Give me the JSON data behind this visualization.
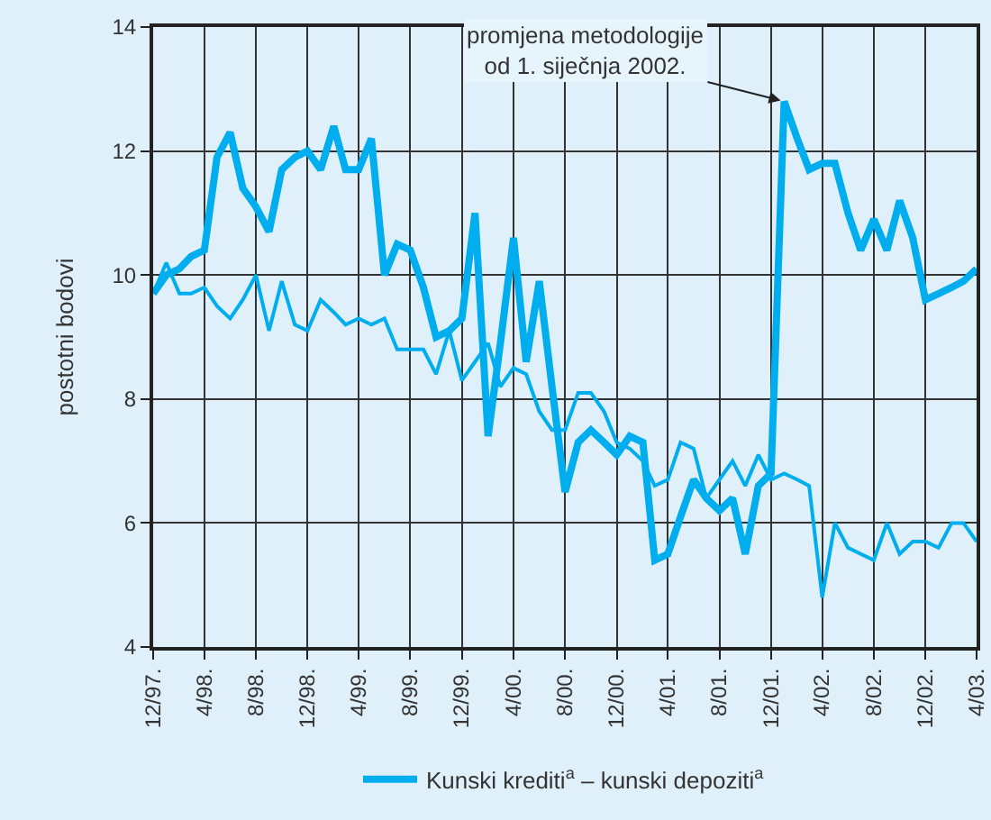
{
  "chart_data": {
    "type": "line",
    "ylabel": "postotni bodovi",
    "x": [
      "1997-12",
      "1998-01",
      "1998-02",
      "1998-03",
      "1998-04",
      "1998-05",
      "1998-06",
      "1998-07",
      "1998-08",
      "1998-09",
      "1998-10",
      "1998-11",
      "1998-12",
      "1999-01",
      "1999-02",
      "1999-03",
      "1999-04",
      "1999-05",
      "1999-06",
      "1999-07",
      "1999-08",
      "1999-09",
      "1999-10",
      "1999-11",
      "1999-12",
      "2000-01",
      "2000-02",
      "2000-03",
      "2000-04",
      "2000-05",
      "2000-06",
      "2000-07",
      "2000-08",
      "2000-09",
      "2000-10",
      "2000-11",
      "2000-12",
      "2001-01",
      "2001-02",
      "2001-03",
      "2001-04",
      "2001-05",
      "2001-06",
      "2001-07",
      "2001-08",
      "2001-09",
      "2001-10",
      "2001-11",
      "2001-12",
      "2002-01",
      "2002-02",
      "2002-03",
      "2002-04",
      "2002-05",
      "2002-06",
      "2002-07",
      "2002-08",
      "2002-09",
      "2002-10",
      "2002-11",
      "2002-12",
      "2003-01",
      "2003-02",
      "2003-03",
      "2003-04"
    ],
    "series": [
      {
        "name": "Kunski krediti$^{a}$ – kunski depoziti$^{a}$",
        "color": "#00aeef",
        "values": [
          9.7,
          10.0,
          10.1,
          10.3,
          10.4,
          11.9,
          12.3,
          11.4,
          11.1,
          10.7,
          11.7,
          11.9,
          12.0,
          11.7,
          12.4,
          11.7,
          11.7,
          12.2,
          10.0,
          10.5,
          10.4,
          9.8,
          9.0,
          9.1,
          9.3,
          11.0,
          7.4,
          8.9,
          10.6,
          8.6,
          9.9,
          8.2,
          6.5,
          7.3,
          7.5,
          7.3,
          7.1,
          7.4,
          7.3,
          5.4,
          5.5,
          6.1,
          6.7,
          6.4,
          6.2,
          6.4,
          5.5,
          6.6,
          6.8,
          12.8,
          12.2,
          11.7,
          11.8,
          11.8,
          11.0,
          10.4,
          10.9,
          10.4,
          11.2,
          10.6,
          9.6,
          9.7,
          9.8,
          9.9,
          10.1
        ]
      },
      {
        "color": "#00aeef",
        "values": [
          9.7,
          10.2,
          9.7,
          9.7,
          9.8,
          9.5,
          9.3,
          9.6,
          10.0,
          9.1,
          9.9,
          9.2,
          9.1,
          9.6,
          9.4,
          9.2,
          9.3,
          9.2,
          9.3,
          8.8,
          8.8,
          8.8,
          8.4,
          9.1,
          8.3,
          8.6,
          8.9,
          8.2,
          8.5,
          8.4,
          7.8,
          7.5,
          7.5,
          8.1,
          8.1,
          7.8,
          7.3,
          7.2,
          7.0,
          6.6,
          6.7,
          7.3,
          7.2,
          6.4,
          6.7,
          7.0,
          6.6,
          7.1,
          6.7,
          6.8,
          6.7,
          6.6,
          4.8,
          6.0,
          5.6,
          5.5,
          5.4,
          6.0,
          5.5,
          5.7,
          5.7,
          5.6,
          6.0,
          6.0,
          5.7
        ]
      }
    ],
    "xlim": [
      "1997-12",
      "2003-04"
    ],
    "xticks": [
      {
        "value": "1997-12",
        "label": "12/97."
      },
      {
        "value": "1998-04",
        "label": "4/98."
      },
      {
        "value": "1998-08",
        "label": "8/98."
      },
      {
        "value": "1998-12",
        "label": "12/98."
      },
      {
        "value": "1999-04",
        "label": "4/99."
      },
      {
        "value": "1999-08",
        "label": "8/99."
      },
      {
        "value": "1999-12",
        "label": "12/99."
      },
      {
        "value": "2000-04",
        "label": "4/00."
      },
      {
        "value": "2000-08",
        "label": "8/00."
      },
      {
        "value": "2000-12",
        "label": "12/00."
      },
      {
        "value": "2001-04",
        "label": "4/01."
      },
      {
        "value": "2001-08",
        "label": "8/01."
      },
      {
        "value": "2001-12",
        "label": "12/01."
      },
      {
        "value": "2002-04",
        "label": "4/02."
      },
      {
        "value": "2002-08",
        "label": "8/02."
      },
      {
        "value": "2002-12",
        "label": "12/02."
      },
      {
        "value": "2003-04",
        "label": "4/03."
      }
    ],
    "ylim": [
      4,
      14
    ],
    "yticks": [
      4,
      6,
      8,
      10,
      12,
      14
    ],
    "grid": true,
    "legend": "bottom",
    "marker": "none",
    "line_style": "solid",
    "annotations": [
      {
        "text": "promjena metodologije\nod 1. siječnja 2002.",
        "x": "2002-01",
        "y": 12.8
      }
    ]
  }
}
